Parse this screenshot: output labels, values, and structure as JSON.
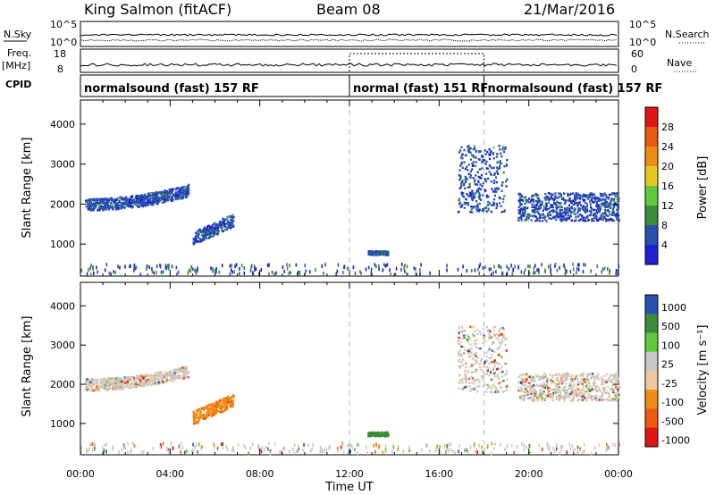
{
  "header": {
    "station": "King Salmon (fitACF)",
    "beam": "Beam 08",
    "date": "21/Mar/2016"
  },
  "strip": {
    "nsky_label": "N.Sky",
    "nsearch_label": "N.Search",
    "left_top": "10^5",
    "left_bottom": "10^0",
    "right_top": "10^5",
    "right_bottom": "10^0",
    "freq_label": "Freq.",
    "freq_unit": "[MHz]",
    "freq_top": "18",
    "freq_bottom": "8",
    "nave_label": "Nave",
    "nave_top": "60",
    "nave_bottom": "0",
    "cpid_label": "CPID",
    "cpid_segments": [
      {
        "label": "normalsound (fast) 157 RF",
        "start": 0,
        "end": 12
      },
      {
        "label": "normal (fast) 151 RF",
        "start": 12,
        "end": 18
      },
      {
        "label": "normalsound (fast) 157 RF",
        "start": 18,
        "end": 24
      }
    ]
  },
  "colors": {
    "power": [
      "#1f1fd6",
      "#2850b0",
      "#3b8c3b",
      "#5fc93c",
      "#e6c81e",
      "#f08c14",
      "#e85a0f",
      "#e01414"
    ],
    "velocity": [
      "#e01414",
      "#f05a10",
      "#f08c14",
      "#f0c8a0",
      "#c8c8c8",
      "#5fc93c",
      "#3b8c3b",
      "#2850b0"
    ]
  },
  "chart_data": [
    {
      "type": "heatmap",
      "title": "",
      "ylabel": "Slant Range [km]",
      "xlabel": "",
      "xlim": [
        0,
        24
      ],
      "ylim": [
        200,
        4600
      ],
      "x_ticks": [
        "00:00",
        "04:00",
        "08:00",
        "12:00",
        "16:00",
        "20:00",
        "00:00"
      ],
      "y_ticks": [
        1000,
        2000,
        3000,
        4000
      ],
      "colorbar": {
        "label": "Power [dB]",
        "ticks": [
          "4",
          "8",
          "12",
          "16",
          "20",
          "24",
          "28"
        ]
      },
      "echo_regions": [
        {
          "t_start": 0.2,
          "t_end": 4.8,
          "range_km": [
            1900,
            2300
          ],
          "level": "low-moderate"
        },
        {
          "t_start": 5.0,
          "t_end": 6.8,
          "range_km": [
            1000,
            1800
          ],
          "level": "low-moderate"
        },
        {
          "t_start": 12.8,
          "t_end": 13.7,
          "range_km": [
            750,
            850
          ],
          "level": "low"
        },
        {
          "t_start": 16.8,
          "t_end": 19.0,
          "range_km": [
            1800,
            3500
          ],
          "level": "low-moderate"
        },
        {
          "t_start": 19.5,
          "t_end": 24.0,
          "range_km": [
            1600,
            2300
          ],
          "level": "low-moderate"
        }
      ]
    },
    {
      "type": "heatmap",
      "title": "",
      "ylabel": "Slant Range [km]",
      "xlabel": "Time UT",
      "xlim": [
        0,
        24
      ],
      "ylim": [
        200,
        4600
      ],
      "x_ticks": [
        "00:00",
        "04:00",
        "08:00",
        "12:00",
        "16:00",
        "20:00",
        "00:00"
      ],
      "y_ticks": [
        1000,
        2000,
        3000,
        4000
      ],
      "colorbar": {
        "label": "Velocity [m s⁻¹]",
        "ticks": [
          "1000",
          "500",
          "100",
          "25",
          "-25",
          "-100",
          "-500",
          "-1000"
        ]
      },
      "echo_regions": [
        {
          "t_start": 0.2,
          "t_end": 4.8,
          "range_km": [
            1900,
            2300
          ],
          "velocity": "near zero"
        },
        {
          "t_start": 5.0,
          "t_end": 6.8,
          "range_km": [
            1000,
            1700
          ],
          "velocity": "-100 to -500"
        },
        {
          "t_start": 12.8,
          "t_end": 13.7,
          "range_km": [
            700,
            800
          ],
          "velocity": "positive"
        },
        {
          "t_start": 16.8,
          "t_end": 19.0,
          "range_km": [
            1800,
            3500
          ],
          "velocity": "mixed"
        },
        {
          "t_start": 19.5,
          "t_end": 24.0,
          "range_km": [
            1600,
            2300
          ],
          "velocity": "near zero"
        }
      ]
    }
  ]
}
